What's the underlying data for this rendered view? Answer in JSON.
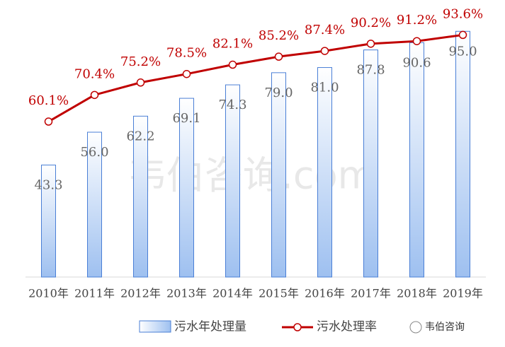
{
  "chart_data": {
    "type": "bar-line",
    "categories": [
      "2010年",
      "2011年",
      "2012年",
      "2013年",
      "2014年",
      "2015年",
      "2016年",
      "2017年",
      "2018年",
      "2019年"
    ],
    "series": [
      {
        "name": "污水年处理量",
        "type": "bar",
        "color": "#4a7fd6",
        "values": [
          43.3,
          56.0,
          62.2,
          69.1,
          74.3,
          79.0,
          81.0,
          87.8,
          90.6,
          95.0
        ],
        "value_labels": [
          "43.3",
          "56.0",
          "62.2",
          "69.1",
          "74.3",
          "79.0",
          "81.0",
          "87.8",
          "90.6",
          "95.0"
        ]
      },
      {
        "name": "污水处理率",
        "type": "line",
        "axis": "y2",
        "color": "#c00000",
        "values": [
          60.1,
          70.4,
          75.2,
          78.5,
          82.1,
          85.2,
          87.4,
          90.2,
          91.2,
          93.6
        ],
        "value_labels": [
          "60.1%",
          "70.4%",
          "75.2%",
          "78.5%",
          "82.1%",
          "85.2%",
          "87.4%",
          "90.2%",
          "91.2%",
          "93.6%"
        ]
      }
    ],
    "ylim": [
      0,
      100
    ],
    "y2lim": [
      0,
      100
    ],
    "legend": "bottom",
    "watermark": "韦伯咨询.com",
    "logo": "韦伯咨询"
  }
}
